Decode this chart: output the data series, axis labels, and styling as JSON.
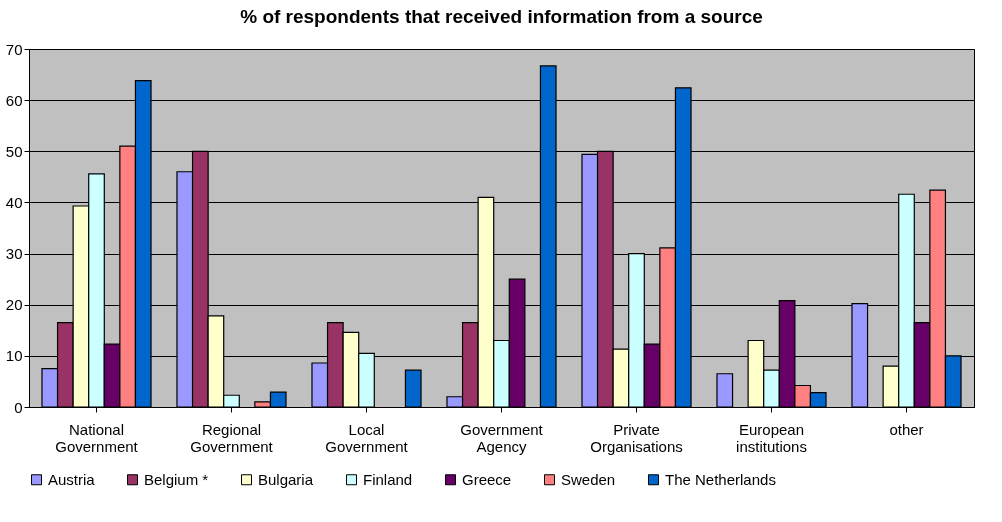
{
  "chart_data": {
    "type": "bar",
    "title": "% of respondents that received information from a source",
    "categories": [
      "National Government",
      "Regional Government",
      "Local Government",
      "Government Agency",
      "Private Organisations",
      "European institutions",
      "other"
    ],
    "series": [
      {
        "name": "Austria",
        "color": "#9999ff",
        "values": [
          7.5,
          46,
          8.6,
          2,
          49.4,
          6.5,
          20.2
        ]
      },
      {
        "name": "Belgium *",
        "color": "#993366",
        "values": [
          16.5,
          50,
          16.5,
          16.5,
          50,
          null,
          null
        ]
      },
      {
        "name": "Bulgaria",
        "color": "#ffffcc",
        "values": [
          39.3,
          17.8,
          14.6,
          41,
          11.3,
          13,
          8
        ]
      },
      {
        "name": "Finland",
        "color": "#ccffff",
        "values": [
          45.6,
          2.3,
          10.5,
          13,
          30,
          7.2,
          41.6
        ]
      },
      {
        "name": "Greece",
        "color": "#660066",
        "values": [
          12.3,
          null,
          null,
          25,
          12.3,
          20.8,
          16.5
        ]
      },
      {
        "name": "Sweden",
        "color": "#ff8080",
        "values": [
          51,
          1,
          null,
          null,
          31.1,
          4.2,
          42.4
        ]
      },
      {
        "name": "The Netherlands",
        "color": "#0066cc",
        "values": [
          63.8,
          2.9,
          7.2,
          66.7,
          62.4,
          2.8,
          10
        ]
      }
    ],
    "ylim": [
      0,
      70
    ],
    "yticks": [
      0,
      10,
      20,
      30,
      40,
      50,
      60,
      70
    ],
    "grid": "y",
    "legend": "bottom"
  }
}
